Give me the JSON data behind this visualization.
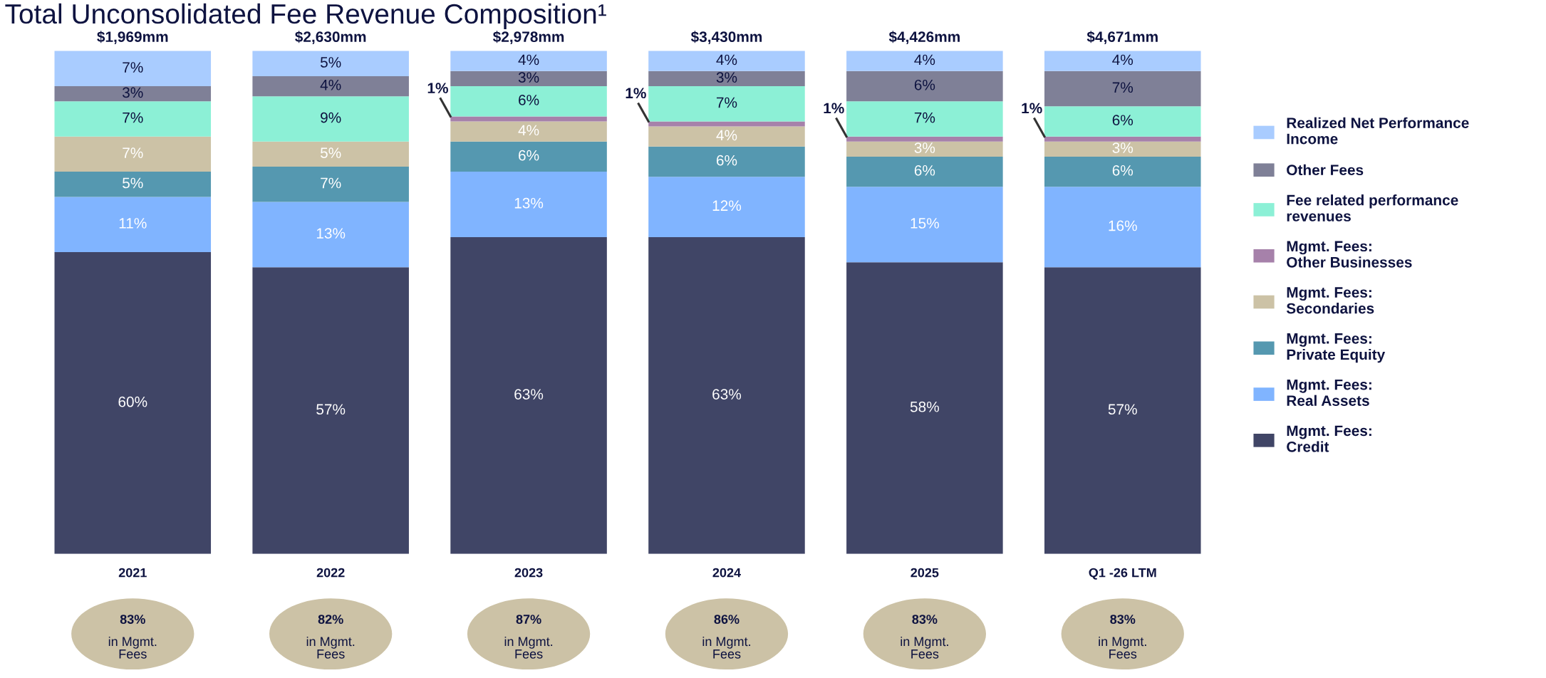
{
  "chart_data": {
    "type": "bar",
    "stacked": true,
    "title": "Total Unconsolidated Fee Revenue Composition¹",
    "categories": [
      "2021",
      "2022",
      "2023",
      "2024",
      "2025",
      "Q1 -26 LTM"
    ],
    "series": [
      {
        "name": "Mgmt. Fees: Credit",
        "color": "#404566",
        "values": [
          60,
          57,
          63,
          63,
          58,
          57
        ],
        "value_labels": [
          "60%",
          "57%",
          "63%",
          "63%",
          "58%",
          "57%"
        ]
      },
      {
        "name": "Mgmt. Fees: Real Assets",
        "color": "#80b4ff",
        "values": [
          11,
          13,
          13,
          12,
          15,
          16
        ],
        "value_labels": [
          "11%",
          "13%",
          "13%",
          "12%",
          "15%",
          "16%"
        ]
      },
      {
        "name": "Mgmt. Fees: Private Equity",
        "color": "#5598b0",
        "values": [
          5,
          7,
          6,
          6,
          6,
          6
        ],
        "value_labels": [
          "5%",
          "7%",
          "6%",
          "6%",
          "6%",
          "6%"
        ]
      },
      {
        "name": "Mgmt. Fees: Secondaries",
        "color": "#ccc2a6",
        "values": [
          7,
          5,
          4,
          4,
          3,
          3
        ],
        "value_labels": [
          "7%",
          "5%",
          "4%",
          "4%",
          "3%",
          "3%"
        ]
      },
      {
        "name": "Mgmt. Fees: Other Businesses",
        "color": "#a681aa",
        "values": [
          null,
          null,
          1,
          1,
          1,
          1
        ],
        "value_labels": [
          null,
          null,
          "1%",
          "1%",
          "1%",
          "1%"
        ]
      },
      {
        "name": "Fee related performance revenues",
        "color": "#8cf0d6",
        "values": [
          7,
          9,
          6,
          7,
          7,
          6
        ],
        "value_labels": [
          "7%",
          "9%",
          "6%",
          "7%",
          "7%",
          "6%"
        ]
      },
      {
        "name": "Other Fees",
        "color": "#7f8097",
        "values": [
          3,
          4,
          3,
          3,
          6,
          7
        ],
        "value_labels": [
          "3%",
          "4%",
          "3%",
          "3%",
          "6%",
          "7%"
        ]
      },
      {
        "name": "Realized Net Performance Income",
        "color": "#a9ccff",
        "values": [
          7,
          5,
          4,
          4,
          4,
          4
        ],
        "value_labels": [
          "7%",
          "5%",
          "4%",
          "4%",
          "4%",
          "4%"
        ]
      }
    ],
    "annotations": [
      {
        "text": "$1,969mm",
        "x": "2021",
        "y": 100
      },
      {
        "text": "$2,630mm",
        "x": "2022",
        "y": 100
      },
      {
        "text": "$2,978mm",
        "x": "2023",
        "y": 100
      },
      {
        "text": "$3,430mm",
        "x": "2024",
        "y": 100
      },
      {
        "text": "$4,426mm",
        "x": "2025",
        "y": 100
      },
      {
        "text": "$4,671mm",
        "x": "Q1 -26 LTM",
        "y": 100
      },
      "83% in Mgmt. Fees",
      "82% in Mgmt. Fees",
      "87% in Mgmt. Fees",
      "86% in Mgmt. Fees",
      "83% in Mgmt. Fees",
      "83% in Mgmt. Fees"
    ],
    "legend": "right",
    "grid": false
  }
}
